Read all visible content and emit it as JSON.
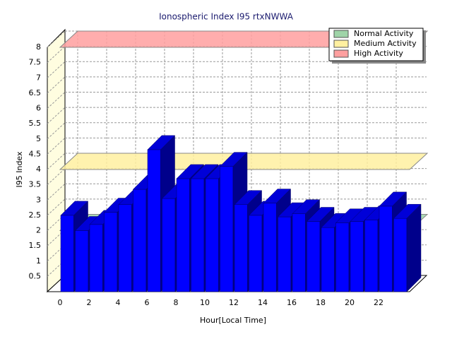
{
  "chart_data": {
    "type": "bar3d",
    "title": "Ionospheric Index I95 rtxNWWA",
    "x_label": "Hour[Local Time]",
    "y_label": "I95 Index",
    "x": [
      0,
      1,
      2,
      3,
      4,
      5,
      6,
      7,
      8,
      9,
      10,
      11,
      12,
      13,
      14,
      15,
      16,
      17,
      18,
      19,
      20,
      21,
      22,
      23
    ],
    "values": [
      2.5,
      2.0,
      2.2,
      2.6,
      2.85,
      3.35,
      4.65,
      3.05,
      3.7,
      3.7,
      3.7,
      4.1,
      2.85,
      2.5,
      2.9,
      2.45,
      2.55,
      2.3,
      2.1,
      2.25,
      2.3,
      2.35,
      2.8,
      2.4
    ],
    "color": "#0000ff",
    "xlim": [
      0,
      24
    ],
    "xticks": [
      0,
      2,
      4,
      6,
      8,
      10,
      12,
      14,
      16,
      18,
      20,
      22
    ],
    "ylim": [
      0,
      8
    ],
    "yticks": [
      0.5,
      1,
      1.5,
      2,
      2.5,
      3,
      3.5,
      4,
      4.5,
      5,
      5.5,
      6,
      6.5,
      7,
      7.5,
      8
    ],
    "grid": true,
    "legend": "top-right",
    "bands": [
      {
        "name": "Normal Activity",
        "color": "#9fd4a8",
        "value": 2
      },
      {
        "name": "Medium Activity",
        "color": "#fff0a0",
        "value": 4
      },
      {
        "name": "High Activity",
        "color": "#ff9f9f",
        "value": 8
      }
    ]
  }
}
